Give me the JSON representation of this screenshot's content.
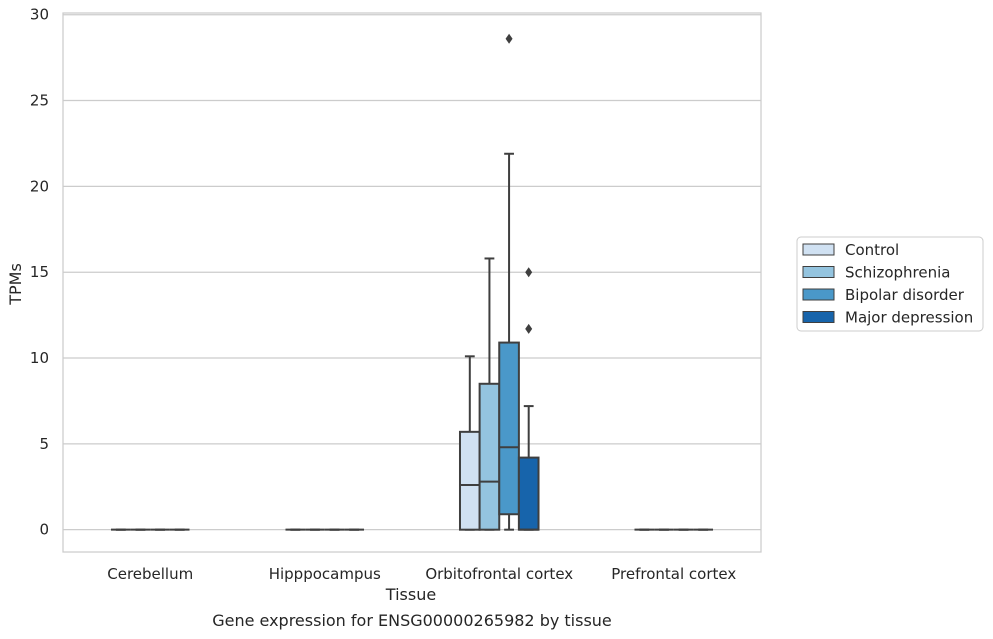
{
  "chart_data": {
    "type": "box",
    "xlabel": "Tissue",
    "ylabel": "TPMs",
    "caption": "Gene expression for ENSG00000265982 by tissue",
    "ylim": [
      -1.3,
      30.1
    ],
    "yticks": [
      0,
      5,
      10,
      15,
      20,
      25,
      30
    ],
    "grid": "horizontal",
    "legend_position": "right",
    "categories": [
      "Cerebellum",
      "Hipppocampus",
      "Orbitofrontal cortex",
      "Prefrontal cortex"
    ],
    "series": [
      {
        "name": "Control",
        "color": "#d0e1f2"
      },
      {
        "name": "Schizophrenia",
        "color": "#94c4df"
      },
      {
        "name": "Bipolar disorder",
        "color": "#4a98c9"
      },
      {
        "name": "Major depression",
        "color": "#1764ab"
      }
    ],
    "boxes": [
      {
        "category": "Cerebellum",
        "series": "Control",
        "whislo": 0,
        "q1": 0,
        "med": 0,
        "q3": 0,
        "whishi": 0,
        "fliers": []
      },
      {
        "category": "Cerebellum",
        "series": "Schizophrenia",
        "whislo": 0,
        "q1": 0,
        "med": 0,
        "q3": 0,
        "whishi": 0,
        "fliers": []
      },
      {
        "category": "Cerebellum",
        "series": "Bipolar disorder",
        "whislo": 0,
        "q1": 0,
        "med": 0,
        "q3": 0,
        "whishi": 0,
        "fliers": []
      },
      {
        "category": "Cerebellum",
        "series": "Major depression",
        "whislo": 0,
        "q1": 0,
        "med": 0,
        "q3": 0,
        "whishi": 0,
        "fliers": []
      },
      {
        "category": "Hipppocampus",
        "series": "Control",
        "whislo": 0,
        "q1": 0,
        "med": 0,
        "q3": 0,
        "whishi": 0,
        "fliers": []
      },
      {
        "category": "Hipppocampus",
        "series": "Schizophrenia",
        "whislo": 0,
        "q1": 0,
        "med": 0,
        "q3": 0,
        "whishi": 0,
        "fliers": []
      },
      {
        "category": "Hipppocampus",
        "series": "Bipolar disorder",
        "whislo": 0,
        "q1": 0,
        "med": 0,
        "q3": 0,
        "whishi": 0,
        "fliers": []
      },
      {
        "category": "Hipppocampus",
        "series": "Major depression",
        "whislo": 0,
        "q1": 0,
        "med": 0,
        "q3": 0,
        "whishi": 0,
        "fliers": []
      },
      {
        "category": "Orbitofrontal cortex",
        "series": "Control",
        "whislo": 0,
        "q1": 0,
        "med": 2.6,
        "q3": 5.7,
        "whishi": 10.1,
        "fliers": []
      },
      {
        "category": "Orbitofrontal cortex",
        "series": "Schizophrenia",
        "whislo": 0,
        "q1": 0,
        "med": 2.8,
        "q3": 8.5,
        "whishi": 15.8,
        "fliers": []
      },
      {
        "category": "Orbitofrontal cortex",
        "series": "Bipolar disorder",
        "whislo": 0,
        "q1": 0.9,
        "med": 4.8,
        "q3": 10.9,
        "whishi": 21.9,
        "fliers": [
          28.6
        ]
      },
      {
        "category": "Orbitofrontal cortex",
        "series": "Major depression",
        "whislo": 0,
        "q1": 0,
        "med": 0,
        "q3": 4.2,
        "whishi": 7.2,
        "fliers": [
          11.7,
          15.0
        ]
      },
      {
        "category": "Prefrontal cortex",
        "series": "Control",
        "whislo": 0,
        "q1": 0,
        "med": 0,
        "q3": 0,
        "whishi": 0,
        "fliers": []
      },
      {
        "category": "Prefrontal cortex",
        "series": "Schizophrenia",
        "whislo": 0,
        "q1": 0,
        "med": 0,
        "q3": 0,
        "whishi": 0,
        "fliers": []
      },
      {
        "category": "Prefrontal cortex",
        "series": "Bipolar disorder",
        "whislo": 0,
        "q1": 0,
        "med": 0,
        "q3": 0,
        "whishi": 0,
        "fliers": []
      },
      {
        "category": "Prefrontal cortex",
        "series": "Major depression",
        "whislo": 0,
        "q1": 0,
        "med": 0,
        "q3": 0,
        "whishi": 0,
        "fliers": []
      }
    ]
  }
}
